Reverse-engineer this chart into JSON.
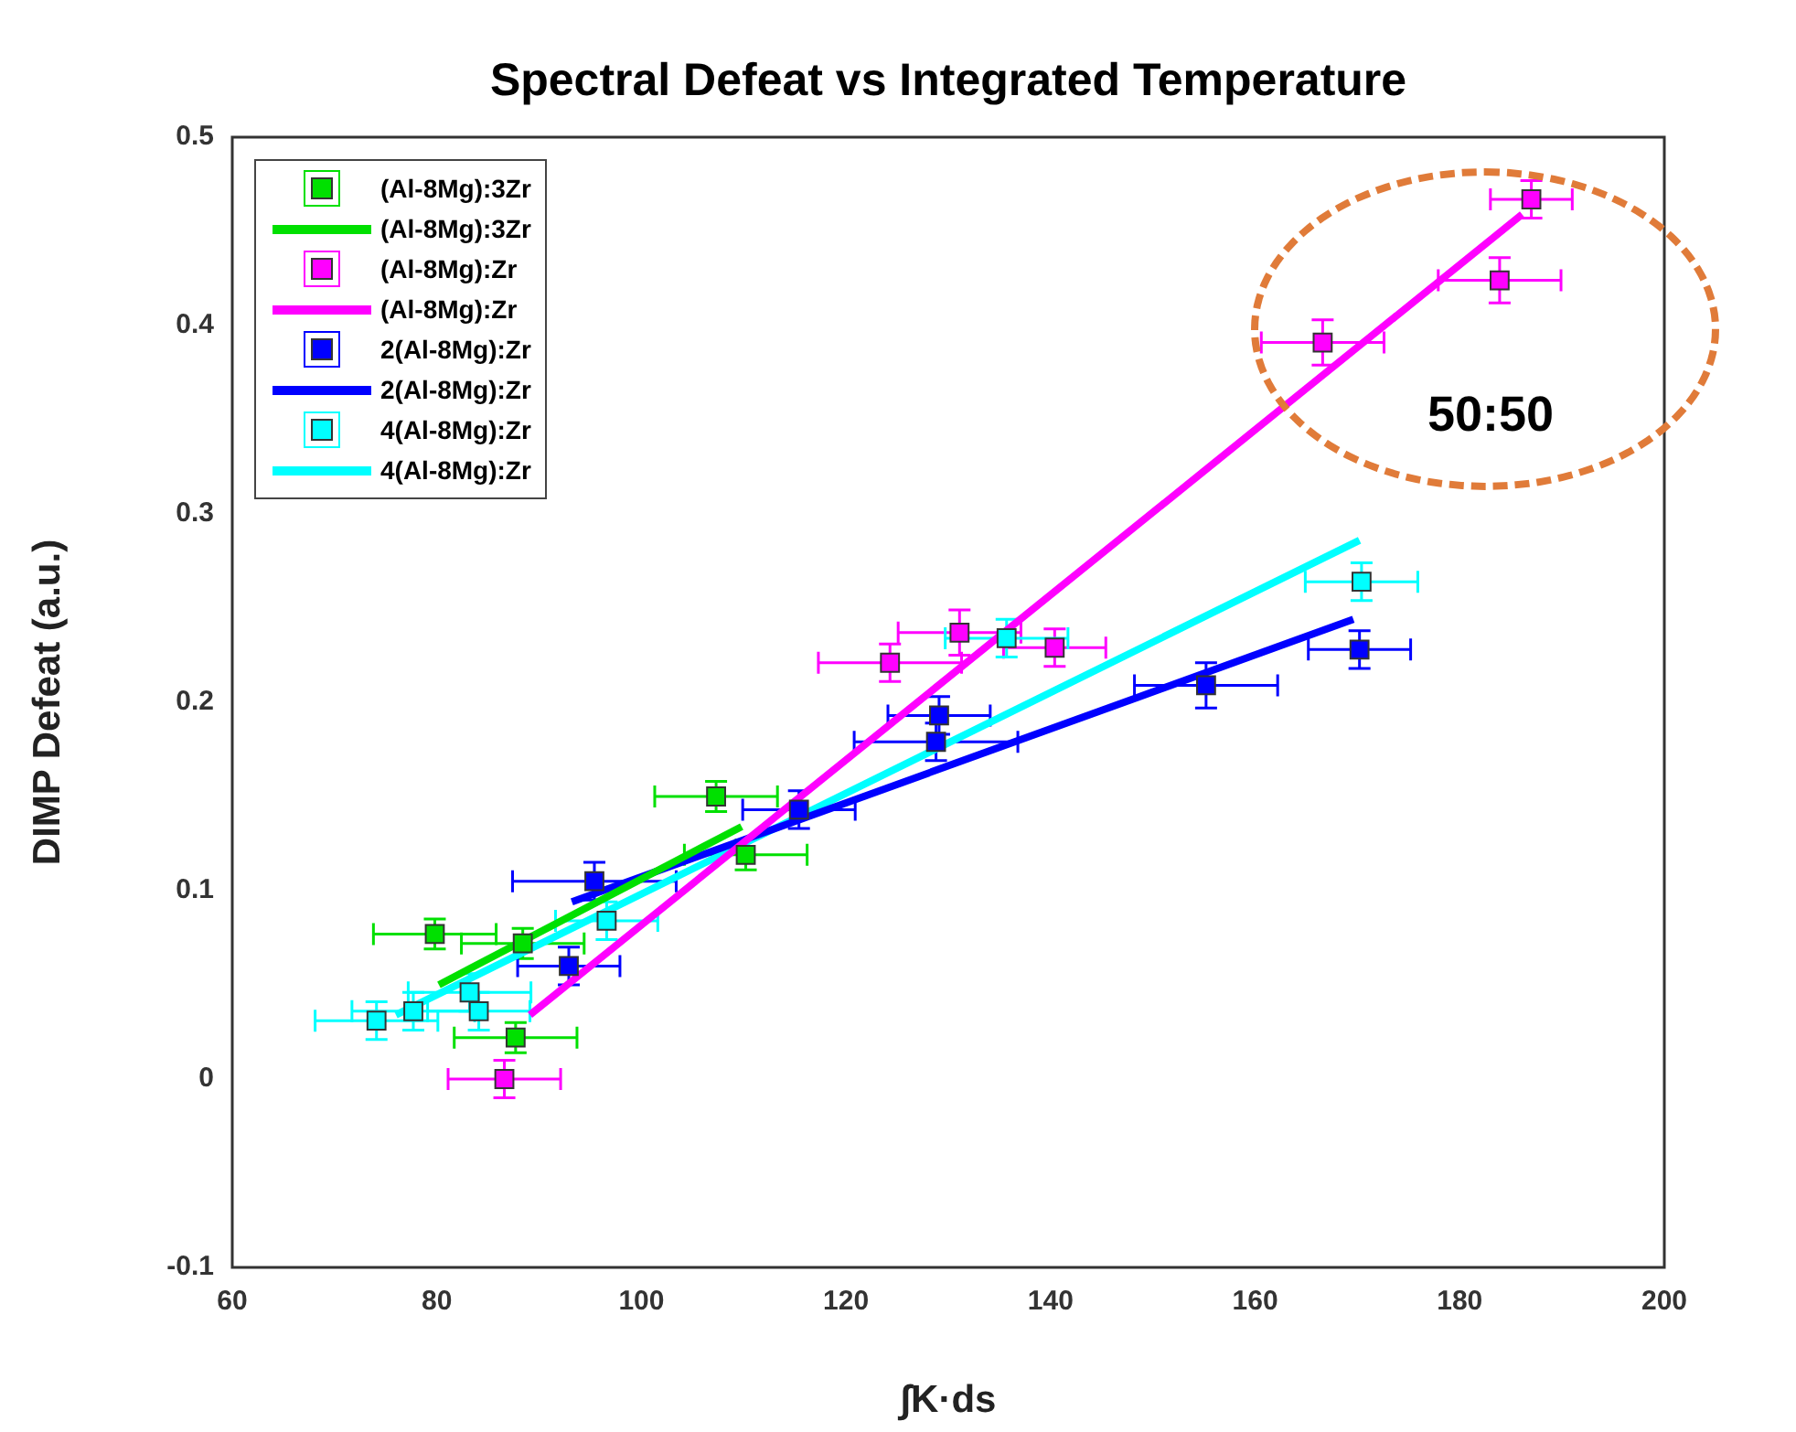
{
  "chart_data": {
    "type": "scatter",
    "title": "Spectral Defeat vs Integrated Temperature",
    "xlabel": "∫K·ds",
    "ylabel": "DIMP Defeat (a.u.)",
    "xlim": [
      60,
      200
    ],
    "xticks": [
      60,
      80,
      100,
      120,
      140,
      160,
      180,
      200
    ],
    "ylim": [
      -0.1,
      0.5
    ],
    "yticks": [
      -0.1,
      0,
      0.1,
      0.2,
      0.3,
      0.4,
      0.5
    ],
    "grid": false,
    "legend": "top left",
    "marker": "square",
    "annotations": [
      "50:50"
    ],
    "series": [
      {
        "name": "(Al-8Mg):3Zr",
        "color": "#00e000",
        "x": [
          79.8,
          88.4,
          87.7,
          107.3,
          110.2
        ],
        "values": [
          0.077,
          0.072,
          0.022,
          0.15,
          0.119
        ],
        "errors": [
          0.008,
          0.008,
          0.008,
          0.008,
          0.008
        ],
        "xerrors": [
          6,
          6,
          6,
          6,
          6
        ]
      },
      {
        "type": "line",
        "marker": "none",
        "name": "(Al-8Mg):3Zr",
        "color": "#00e000",
        "x": [
          80.2,
          109.8
        ],
        "values": [
          0.05,
          0.134
        ]
      },
      {
        "name": "(Al-8Mg):Zr",
        "color": "#ff00ff",
        "x": [
          86.6,
          124.3,
          131.1,
          140.4,
          166.6,
          183.9,
          187
        ],
        "values": [
          0,
          0.221,
          0.237,
          0.229,
          0.391,
          0.424,
          0.467
        ],
        "errors": [
          0.01,
          0.01,
          0.012,
          0.01,
          0.012,
          0.012,
          0.01
        ],
        "xerrors": [
          5.5,
          7,
          6,
          5,
          6,
          6,
          4
        ]
      },
      {
        "type": "line",
        "marker": "none",
        "name": "(Al-8Mg):Zr",
        "color": "#ff00ff",
        "x": [
          89.1,
          186.1
        ],
        "values": [
          0.034,
          0.459
        ]
      },
      {
        "name": "2(Al-8Mg):Zr",
        "color": "#0000ff",
        "x": [
          95.4,
          92.9,
          115.4,
          129.1,
          128.8,
          155.2,
          170.2
        ],
        "values": [
          0.105,
          0.06,
          0.143,
          0.193,
          0.179,
          0.209,
          0.228
        ],
        "errors": [
          0.01,
          0.01,
          0.01,
          0.01,
          0.01,
          0.012,
          0.01
        ],
        "xerrors": [
          8,
          5,
          5.5,
          5,
          8,
          7,
          5
        ]
      },
      {
        "type": "line",
        "marker": "none",
        "name": "2(Al-8Mg):Zr",
        "color": "#0000ff",
        "x": [
          93.2,
          169.6
        ],
        "values": [
          0.094,
          0.244
        ]
      },
      {
        "name": "4(Al-8Mg):Zr",
        "color": "#00ffff",
        "x": [
          74.1,
          77.7,
          83.2,
          84.1,
          96.6,
          135.7,
          170.4
        ],
        "values": [
          0.031,
          0.036,
          0.046,
          0.036,
          0.084,
          0.234,
          0.264
        ],
        "errors": [
          0.01,
          0.01,
          0.01,
          0.01,
          0.01,
          0.01,
          0.01
        ],
        "xerrors": [
          6,
          6,
          6,
          5,
          5,
          6,
          5.5
        ]
      },
      {
        "type": "line",
        "marker": "none",
        "name": "4(Al-8Mg):Zr",
        "color": "#00ffff",
        "x": [
          76,
          170.2
        ],
        "values": [
          0.034,
          0.286
        ]
      }
    ]
  }
}
